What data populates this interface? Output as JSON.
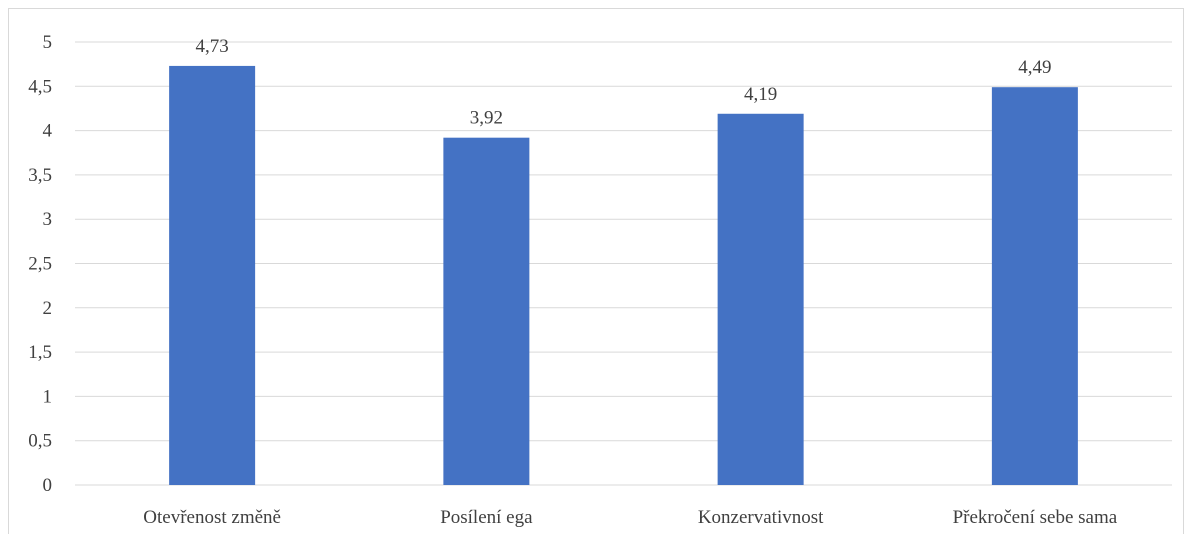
{
  "chart_data": {
    "type": "bar",
    "categories": [
      "Otevřenost změně",
      "Posílení ega",
      "Konzervativnost",
      "Překročení sebe sama"
    ],
    "values": [
      4.73,
      3.92,
      4.19,
      4.49
    ],
    "data_labels": [
      "4,73",
      "3,92",
      "4,19",
      "4,49"
    ],
    "y_ticks": [
      0,
      0.5,
      1,
      1.5,
      2,
      2.5,
      3,
      3.5,
      4,
      4.5,
      5
    ],
    "y_tick_labels": [
      "0",
      "0,5",
      "1",
      "1,5",
      "2",
      "2,5",
      "3",
      "3,5",
      "4",
      "4,5",
      "5"
    ],
    "ylim": [
      0,
      5
    ],
    "grid": true,
    "title": "",
    "xlabel": "",
    "ylabel": "",
    "colors": {
      "bar": "#4472c4",
      "grid": "#d9d9d9",
      "text": "#404040"
    }
  }
}
